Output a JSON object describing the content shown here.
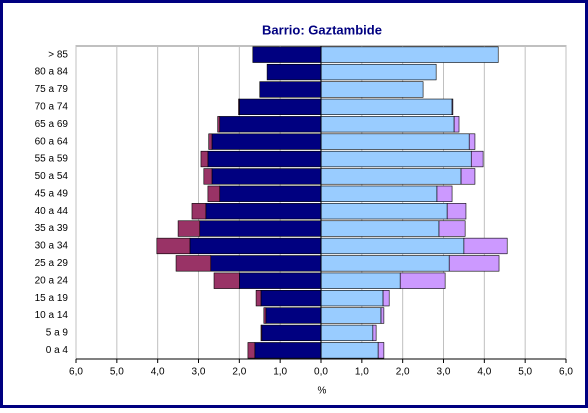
{
  "chart_data": {
    "type": "pyramid",
    "title": "Barrio: Gaztambide",
    "x_label": "%",
    "categories": [
      "> 85",
      "80 a 84",
      "75 a 79",
      "70 a 74",
      "65 a 69",
      "60 a 64",
      "55 a 59",
      "50 a 54",
      "45 a 49",
      "40 a 44",
      "35 a 39",
      "30 a 34",
      "25 a 29",
      "20 a 24",
      "15 a 19",
      "10 a 14",
      "5 a 9",
      "0 a 4"
    ],
    "series": [
      {
        "color": "#000080",
        "values": [
          -1.67,
          -1.32,
          -1.5,
          -2.0,
          -2.48,
          -2.67,
          -2.77,
          -2.67,
          -2.48,
          -2.82,
          -2.97,
          -3.21,
          -2.7,
          -2.0,
          -1.47,
          -1.35,
          -1.45,
          -1.62
        ]
      },
      {
        "color": "#993366",
        "values": [
          0,
          0,
          0,
          -0.02,
          -0.05,
          -0.08,
          -0.17,
          -0.2,
          -0.29,
          -0.34,
          -0.53,
          -0.81,
          -0.85,
          -0.62,
          -0.12,
          -0.05,
          -0.02,
          -0.17
        ]
      },
      {
        "color": "#99ccff",
        "values": [
          4.34,
          2.82,
          2.5,
          3.21,
          3.26,
          3.63,
          3.68,
          3.43,
          2.84,
          3.09,
          2.89,
          3.5,
          3.14,
          1.94,
          1.52,
          1.47,
          1.27,
          1.4
        ]
      },
      {
        "color": "#cc99ff",
        "values": [
          0,
          0,
          0,
          0.02,
          0.12,
          0.14,
          0.29,
          0.34,
          0.37,
          0.46,
          0.64,
          1.06,
          1.22,
          1.1,
          0.15,
          0.07,
          0.08,
          0.14
        ]
      }
    ],
    "xlim": [
      -6,
      6
    ],
    "xticks": [
      {
        "value": -6,
        "label": "6,0"
      },
      {
        "value": -5,
        "label": "5,0"
      },
      {
        "value": -4,
        "label": "4,0"
      },
      {
        "value": -3,
        "label": "3,0"
      },
      {
        "value": -2,
        "label": "2,0"
      },
      {
        "value": -1,
        "label": "1,0"
      },
      {
        "value": 0,
        "label": "0,0"
      },
      {
        "value": 1,
        "label": "1,0"
      },
      {
        "value": 2,
        "label": "2,0"
      },
      {
        "value": 3,
        "label": "3,0"
      },
      {
        "value": 4,
        "label": "4,0"
      },
      {
        "value": 5,
        "label": "5,0"
      },
      {
        "value": 6,
        "label": "6,0"
      }
    ],
    "grid": true
  }
}
